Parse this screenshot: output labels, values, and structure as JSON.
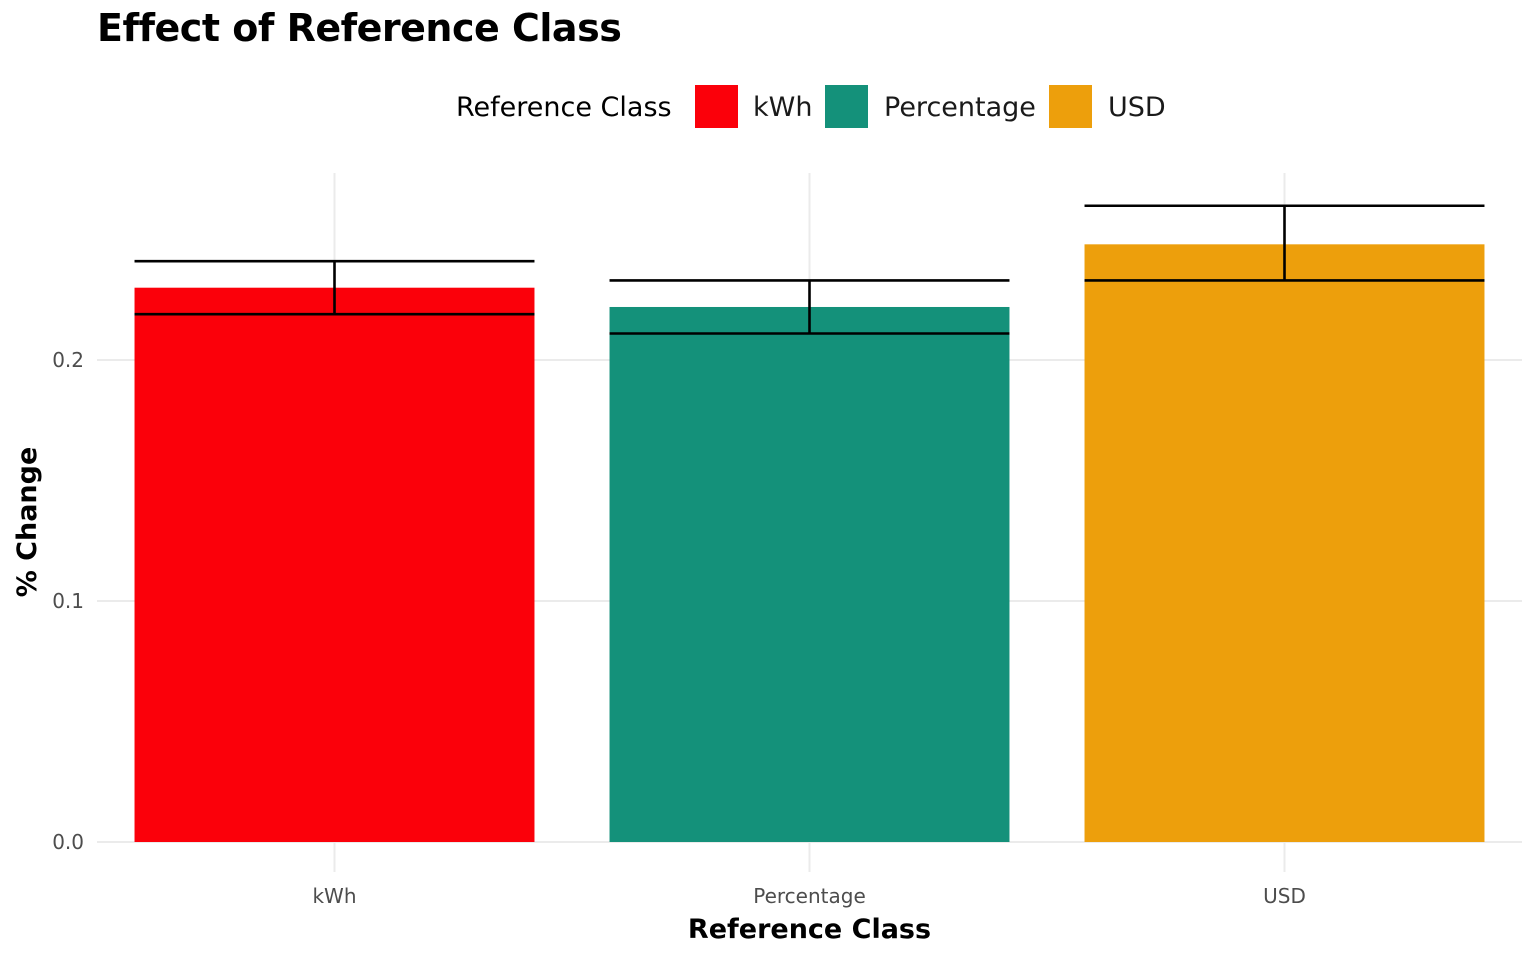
{
  "chart_data": {
    "type": "bar",
    "title": "Effect of Reference Class",
    "xlabel": "Reference Class",
    "ylabel": "% Change",
    "categories": [
      "kWh",
      "Percentage",
      "USD"
    ],
    "values": [
      0.23,
      0.222,
      0.248
    ],
    "error_low": [
      0.219,
      0.211,
      0.233
    ],
    "error_high": [
      0.241,
      0.233,
      0.264
    ],
    "colors": [
      "#fb000a",
      "#14917a",
      "#ed9f0c"
    ],
    "ylim": [
      0,
      0.28
    ],
    "yticks": [
      0.0,
      0.1,
      0.2
    ],
    "ytick_labels": [
      "0.0",
      "0.1",
      "0.2"
    ],
    "grid": true,
    "legend": {
      "title": "Reference Class",
      "position": "top",
      "entries": [
        "kWh",
        "Percentage",
        "USD"
      ]
    }
  }
}
